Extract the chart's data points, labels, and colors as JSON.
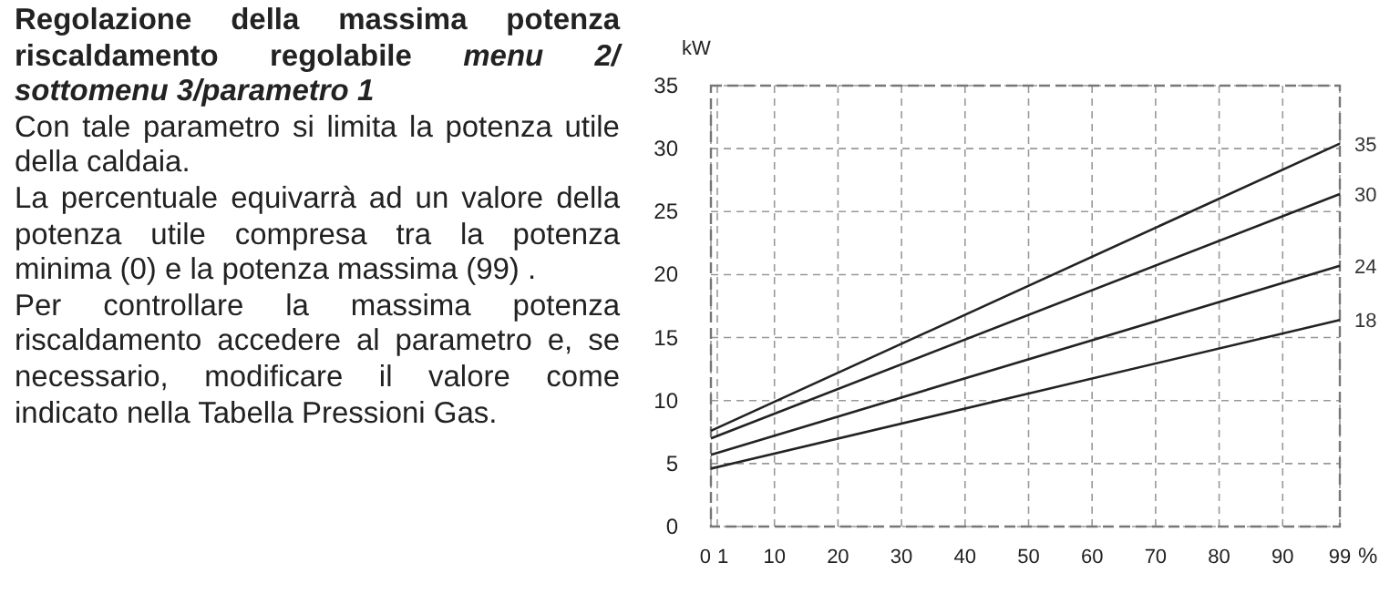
{
  "chart_data": {
    "type": "line",
    "title": "Regolazione della massima potenza riscaldamento regolabile",
    "subtitle": "menu 2/ sottomenu 3/parametro 1",
    "annotations": [
      "Con tale parametro si limita la potenza utile della caldaia.",
      "La percentuale equivarrà ad un valore della potenza utile compresa tra la potenza minima (0) e la potenza massima (99) .",
      "Per controllare la massima potenza riscaldamento accedere al parametro e, se necessario, modificare il valore come indicato nella Tabella Pressioni Gas."
    ],
    "ylabel": "kW",
    "xlabel": "%",
    "x": [
      0,
      99
    ],
    "series": [
      {
        "name": "35",
        "color": "#222222",
        "values": [
          7.6,
          30.4
        ]
      },
      {
        "name": "30",
        "color": "#222222",
        "values": [
          7.0,
          26.4
        ]
      },
      {
        "name": "24",
        "color": "#222222",
        "values": [
          5.7,
          20.7
        ]
      },
      {
        "name": "18",
        "color": "#222222",
        "values": [
          4.6,
          16.4
        ]
      }
    ],
    "xlim": [
      0,
      99
    ],
    "xticks": [
      0,
      1,
      10,
      20,
      30,
      40,
      50,
      60,
      70,
      80,
      90,
      99
    ],
    "ylim": [
      0,
      35
    ],
    "yticks": [
      0,
      5,
      10,
      15,
      20,
      25,
      30,
      35
    ],
    "grid": true,
    "line_style": "solid",
    "marker": "none"
  }
}
